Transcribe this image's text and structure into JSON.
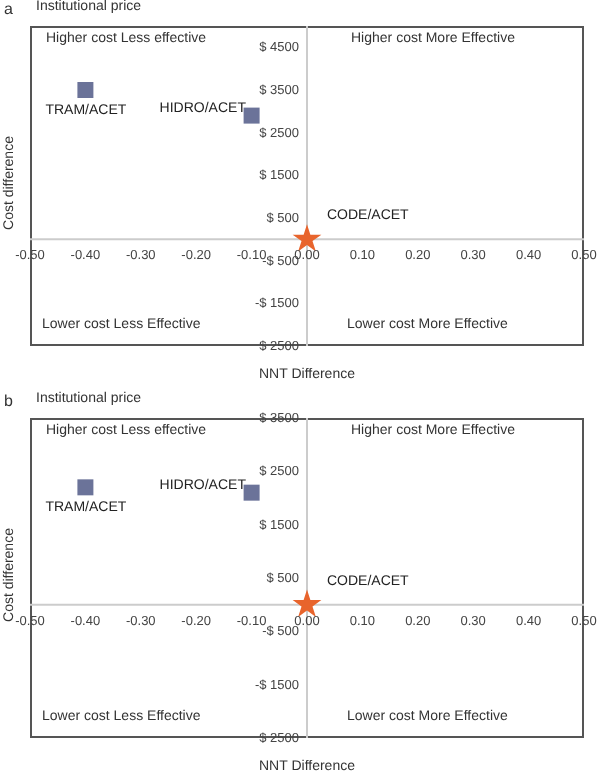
{
  "chart_data": [
    {
      "type": "scatter",
      "title": "Institutional price",
      "xlabel": "NNT Difference",
      "ylabel": "Cost difference",
      "annotations": [
        "a",
        "Higher cost Less effective",
        "Higher cost More Effective",
        "Lower cost Less Effective",
        "Lower cost More Effective"
      ],
      "xlim": [
        -0.5,
        0.5
      ],
      "xticks": [
        {
          "value": -0.5,
          "label": "-0.50"
        },
        {
          "value": -0.4,
          "label": "-0.40"
        },
        {
          "value": -0.3,
          "label": "-0.30"
        },
        {
          "value": -0.2,
          "label": "-0.20"
        },
        {
          "value": -0.1,
          "label": "-0.10"
        },
        {
          "value": 0,
          "label": "0.00"
        },
        {
          "value": 0.1,
          "label": "0.10"
        },
        {
          "value": 0.2,
          "label": "0.20"
        },
        {
          "value": 0.3,
          "label": "0.30"
        },
        {
          "value": 0.4,
          "label": "0.40"
        },
        {
          "value": 0.5,
          "label": "0.50"
        }
      ],
      "ylim": [
        -2500,
        5000
      ],
      "yticks": [
        {
          "value": 4500,
          "label": "$ 4500"
        },
        {
          "value": 3500,
          "label": "$ 3500"
        },
        {
          "value": 2500,
          "label": "$ 2500"
        },
        {
          "value": 1500,
          "label": "$ 1500"
        },
        {
          "value": 500,
          "label": "$ 500"
        },
        {
          "value": -500,
          "label": "-$ 500"
        },
        {
          "value": -1500,
          "label": "-$ 1500"
        },
        {
          "value": -2500,
          "label": "$ 2500"
        }
      ],
      "series": [
        {
          "name": "TRAM/ACET",
          "color": "#6b7399",
          "marker": "square",
          "x": [
            -0.4
          ],
          "values": [
            3500
          ]
        },
        {
          "name": "HIDRO/ACET",
          "color": "#6b7399",
          "marker": "square",
          "x": [
            -0.1
          ],
          "values": [
            2900
          ]
        },
        {
          "name": "CODE/ACET",
          "color": "#e8642c",
          "marker": "star",
          "x": [
            0
          ],
          "values": [
            0
          ]
        }
      ]
    },
    {
      "type": "scatter",
      "title": "Institutional price",
      "xlabel": "NNT Difference",
      "ylabel": "Cost difference",
      "annotations": [
        "b",
        "Higher cost Less effective",
        "Higher cost More Effective",
        "Lower cost Less Effective",
        "Lower cost More Effective"
      ],
      "xlim": [
        -0.5,
        0.5
      ],
      "xticks": [
        {
          "value": -0.5,
          "label": "-0.50"
        },
        {
          "value": -0.4,
          "label": "-0.40"
        },
        {
          "value": -0.3,
          "label": "-0.30"
        },
        {
          "value": -0.2,
          "label": "-0.20"
        },
        {
          "value": -0.1,
          "label": "-0.10"
        },
        {
          "value": 0,
          "label": "0.00"
        },
        {
          "value": 0.1,
          "label": "0.10"
        },
        {
          "value": 0.2,
          "label": "0.20"
        },
        {
          "value": 0.3,
          "label": "0.30"
        },
        {
          "value": 0.4,
          "label": "0.40"
        },
        {
          "value": 0.5,
          "label": "0.50"
        }
      ],
      "ylim": [
        -2500,
        3500
      ],
      "yticks": [
        {
          "value": 3500,
          "label": "$ 3500"
        },
        {
          "value": 2500,
          "label": "$ 2500"
        },
        {
          "value": 1500,
          "label": "$ 1500"
        },
        {
          "value": 500,
          "label": "$ 500"
        },
        {
          "value": -500,
          "label": "-$ 500"
        },
        {
          "value": -1500,
          "label": "-$ 1500"
        },
        {
          "value": -2500,
          "label": "$ 2500"
        }
      ],
      "series": [
        {
          "name": "TRAM/ACET",
          "color": "#6b7399",
          "marker": "square",
          "x": [
            -0.4
          ],
          "values": [
            2200
          ]
        },
        {
          "name": "HIDRO/ACET",
          "color": "#6b7399",
          "marker": "square",
          "x": [
            -0.1
          ],
          "values": [
            2100
          ]
        },
        {
          "name": "CODE/ACET",
          "color": "#e8642c",
          "marker": "star",
          "x": [
            0
          ],
          "values": [
            0
          ]
        }
      ]
    }
  ]
}
